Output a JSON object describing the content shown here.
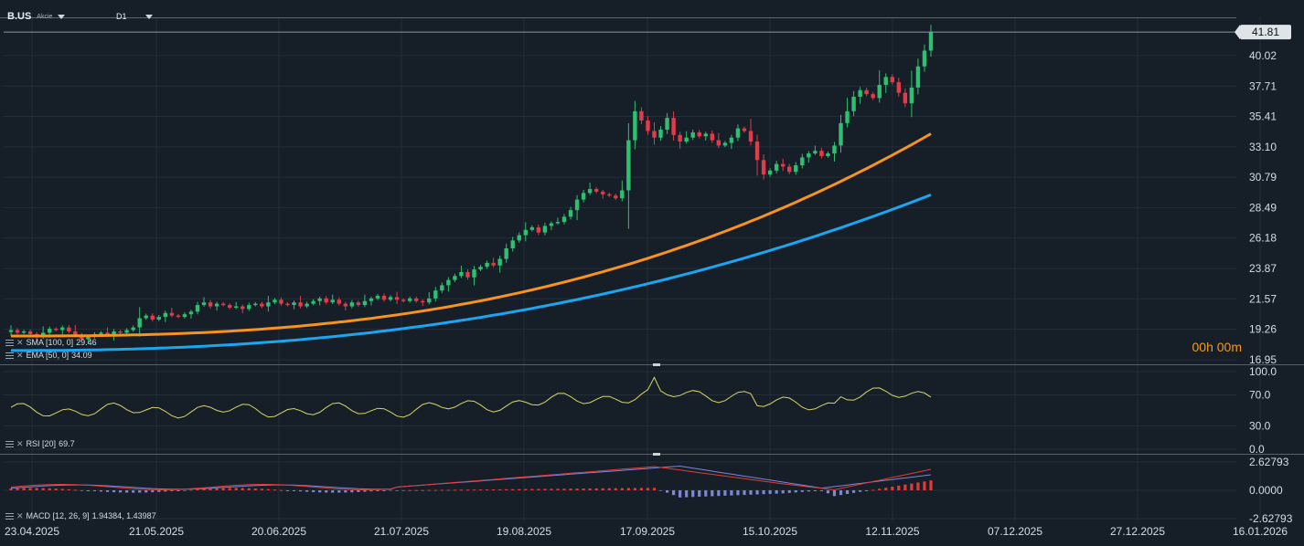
{
  "header": {
    "symbol": "B.US",
    "asset_type": "Akcie",
    "timeframe": "D1"
  },
  "timer": "00h 00m",
  "colors": {
    "background": "#161f27",
    "up_candle": "#2fbf71",
    "down_candle": "#e23b4b",
    "sma_line": "#1aa6f0",
    "ema_line": "#f7931e",
    "rsi_line": "#d9d46a",
    "macd_line": "#e03b3b",
    "signal_line": "#7d86d9",
    "hist_positive": "#e03b3b",
    "hist_negative": "#7d86d9"
  },
  "indicators": {
    "sma": {
      "label": "SMA [100, 0]",
      "value": "29.46"
    },
    "ema": {
      "label": "EMA [50, 0]",
      "value": "34.09"
    },
    "rsi": {
      "label": "RSI [20]",
      "value": "69.7"
    },
    "macd": {
      "label": "MACD [12, 26, 9]",
      "value": "1.94384, 1.43987"
    }
  },
  "chart_data": [
    {
      "type": "candlestick",
      "x_labels": [
        "23.04.2025",
        "21.05.2025",
        "20.06.2025",
        "21.07.2025",
        "19.08.2025",
        "17.09.2025",
        "15.10.2025",
        "12.11.2025",
        "07.12.2025",
        "27.12.2025",
        "16.01.2026"
      ],
      "y_ticks": [
        "16.95",
        "19.26",
        "21.57",
        "23.87",
        "26.18",
        "28.49",
        "30.79",
        "33.10",
        "35.41",
        "37.71",
        "40.02"
      ],
      "ylim": [
        16.95,
        42.3
      ],
      "last_price": "41.81",
      "closes": [
        19.2,
        19.0,
        19.1,
        18.9,
        18.7,
        19.0,
        19.3,
        19.2,
        19.4,
        19.1,
        18.8,
        18.5,
        18.7,
        18.9,
        19.0,
        18.8,
        19.1,
        19.0,
        19.2,
        19.4,
        20.1,
        20.3,
        20.0,
        20.2,
        20.5,
        20.3,
        20.2,
        20.4,
        20.6,
        21.1,
        21.3,
        21.0,
        21.2,
        21.1,
        20.9,
        21.0,
        20.8,
        21.1,
        21.2,
        21.0,
        21.3,
        21.5,
        21.2,
        21.1,
        21.3,
        21.0,
        21.2,
        21.4,
        21.6,
        21.3,
        21.5,
        21.2,
        21.0,
        21.3,
        21.1,
        21.4,
        21.6,
        21.8,
        21.5,
        21.7,
        21.5,
        21.4,
        21.6,
        21.4,
        21.3,
        21.6,
        22.2,
        22.6,
        23.0,
        23.3,
        23.6,
        23.2,
        23.8,
        24.0,
        24.3,
        24.1,
        24.6,
        25.4,
        26.0,
        26.4,
        26.8,
        27.0,
        26.6,
        27.1,
        27.3,
        27.4,
        27.8,
        28.3,
        29.1,
        29.6,
        29.9,
        29.7,
        29.5,
        29.4,
        29.2,
        29.8,
        33.6,
        35.8,
        35.1,
        34.3,
        33.8,
        34.4,
        35.3,
        34.0,
        33.5,
        33.8,
        34.2,
        33.9,
        34.1,
        33.6,
        33.2,
        33.4,
        33.8,
        34.5,
        34.3,
        33.5,
        32.1,
        31.0,
        31.3,
        31.8,
        31.6,
        31.2,
        31.7,
        32.3,
        32.6,
        32.8,
        32.4,
        32.6,
        33.2,
        34.9,
        35.8,
        36.9,
        37.4,
        37.1,
        36.8,
        37.8,
        38.4,
        38.0,
        37.2,
        36.4,
        37.6,
        39.2,
        40.4,
        41.81
      ],
      "sma_range": [
        17.65,
        29.46
      ],
      "ema_range": [
        18.75,
        34.09
      ]
    },
    {
      "type": "line",
      "name": "RSI",
      "y_ticks": [
        "100.0",
        "70.0",
        "30.0",
        "0.0"
      ],
      "ylim": [
        0,
        100
      ]
    },
    {
      "type": "line+histogram",
      "name": "MACD",
      "y_ticks": [
        "2.62793",
        "0.0000",
        "-2.62793"
      ],
      "ylim": [
        -2.62793,
        2.62793
      ]
    }
  ]
}
